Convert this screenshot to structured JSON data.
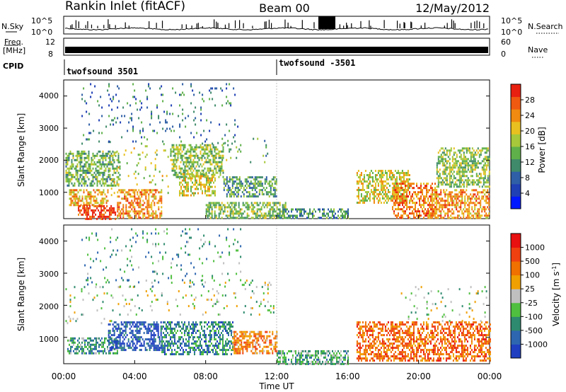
{
  "header": {
    "station": "Rankin Inlet (fitACF)",
    "beam": "Beam 00",
    "date": "12/May/2012"
  },
  "side_labels": {
    "nsky": "N.Sky",
    "nsearch": "N.Search",
    "freq_line1": "Freq.",
    "freq_line2": "[MHz]",
    "nave": "Nave",
    "cpid": "CPID"
  },
  "noise_axis": {
    "left_top": "10^5",
    "left_bottom": "10^0",
    "right_top": "10^5",
    "right_bottom": "10^0"
  },
  "freq_axis": {
    "left_top": "12",
    "left_bottom": "8",
    "right_top": "60",
    "right_bottom": "0"
  },
  "cpid_segments": [
    {
      "label": "twofsound 3501",
      "start_hour": 0
    },
    {
      "label": "twofsound -3501",
      "start_hour": 12
    }
  ],
  "time_axis": {
    "label": "Time UT",
    "ticks": [
      "00:00",
      "04:00",
      "08:00",
      "12:00",
      "16:00",
      "20:00",
      "00:00"
    ]
  },
  "chart_data": [
    {
      "type": "heatmap",
      "name": "power",
      "ylabel": "Slant Range [km]",
      "yticks": [
        "1000",
        "2000",
        "3000",
        "4000"
      ],
      "ylim": [
        180,
        4500
      ],
      "xlim_hours": [
        0,
        24
      ],
      "colorbar_label": "Power [dB]",
      "colorbar_ticks": [
        "4",
        "8",
        "12",
        "16",
        "20",
        "24",
        "28"
      ],
      "colorbar_colors": [
        "#0018ff",
        "#1f3fb5",
        "#2f5fa6",
        "#3f8a6a",
        "#5fb04a",
        "#a6c83a",
        "#e8c020",
        "#f08a10",
        "#f05a10",
        "#e82010"
      ],
      "clusters": [
        {
          "t0": 0.1,
          "t1": 3.2,
          "r0": 1200,
          "r1": 2300,
          "level": 0.45
        },
        {
          "t0": 0.3,
          "t1": 2.5,
          "r0": 600,
          "r1": 1100,
          "level": 0.7
        },
        {
          "t0": 0.8,
          "t1": 3.0,
          "r0": 200,
          "r1": 600,
          "level": 0.9
        },
        {
          "t0": 2.5,
          "t1": 6.0,
          "r0": 900,
          "r1": 2600,
          "level": 0.55
        },
        {
          "t0": 3.0,
          "t1": 5.5,
          "r0": 200,
          "r1": 1100,
          "level": 0.75
        },
        {
          "t0": 6.0,
          "t1": 9.0,
          "r0": 1500,
          "r1": 2500,
          "level": 0.5
        },
        {
          "t0": 6.5,
          "t1": 8.5,
          "r0": 900,
          "r1": 1600,
          "level": 0.6
        },
        {
          "t0": 8.5,
          "t1": 11.5,
          "r0": 1900,
          "r1": 2700,
          "level": 0.45
        },
        {
          "t0": 9.0,
          "t1": 12.0,
          "r0": 900,
          "r1": 1500,
          "level": 0.4
        },
        {
          "t0": 8.0,
          "t1": 12.5,
          "r0": 200,
          "r1": 700,
          "level": 0.5
        },
        {
          "t0": 12.0,
          "t1": 16.0,
          "r0": 200,
          "r1": 500,
          "level": 0.35
        },
        {
          "t0": 16.5,
          "t1": 19.5,
          "r0": 700,
          "r1": 1700,
          "level": 0.6
        },
        {
          "t0": 18.5,
          "t1": 21.0,
          "r0": 200,
          "r1": 1300,
          "level": 0.8
        },
        {
          "t0": 21.0,
          "t1": 24.0,
          "r0": 1200,
          "r1": 2400,
          "level": 0.5
        },
        {
          "t0": 20.5,
          "t1": 24.0,
          "r0": 200,
          "r1": 1100,
          "level": 0.75
        },
        {
          "t0": 1.0,
          "t1": 10.0,
          "r0": 2500,
          "r1": 4400,
          "level": 0.3
        }
      ]
    },
    {
      "type": "heatmap",
      "name": "velocity",
      "ylabel": "Slant Range [km]",
      "yticks": [
        "1000",
        "2000",
        "3000",
        "4000"
      ],
      "ylim": [
        180,
        4500
      ],
      "xlim_hours": [
        0,
        24
      ],
      "colorbar_label": "Velocity [m s^-1]",
      "colorbar_ticks": [
        "1000",
        "500",
        "100",
        "25",
        "-25",
        "-100",
        "-500",
        "-1000"
      ],
      "colorbar_colors": [
        "#1f3fc0",
        "#2e66b0",
        "#2e8a6e",
        "#4fbf3f",
        "#bfbfbf",
        "#f0a000",
        "#f07000",
        "#f04010",
        "#e81010"
      ],
      "clusters": [
        {
          "t0": 0.1,
          "t1": 3.5,
          "r0": 1400,
          "r1": 2600,
          "level": 0.45
        },
        {
          "t0": 0.2,
          "t1": 3.0,
          "r0": 500,
          "r1": 1000,
          "level": 0.3
        },
        {
          "t0": 2.5,
          "t1": 5.5,
          "r0": 600,
          "r1": 1500,
          "level": 0.1
        },
        {
          "t0": 3.5,
          "t1": 12.0,
          "r0": 1700,
          "r1": 2800,
          "level": 0.45
        },
        {
          "t0": 5.5,
          "t1": 9.5,
          "r0": 500,
          "r1": 1500,
          "level": 0.25
        },
        {
          "t0": 9.5,
          "t1": 12.0,
          "r0": 500,
          "r1": 1200,
          "level": 0.7
        },
        {
          "t0": 12.0,
          "t1": 16.0,
          "r0": 200,
          "r1": 600,
          "level": 0.35
        },
        {
          "t0": 16.5,
          "t1": 24.0,
          "r0": 300,
          "r1": 1500,
          "level": 0.75
        },
        {
          "t0": 19.0,
          "t1": 24.0,
          "r0": 1500,
          "r1": 2600,
          "level": 0.45
        },
        {
          "t0": 1.0,
          "t1": 10.0,
          "r0": 2600,
          "r1": 4400,
          "level": 0.3
        }
      ]
    }
  ]
}
